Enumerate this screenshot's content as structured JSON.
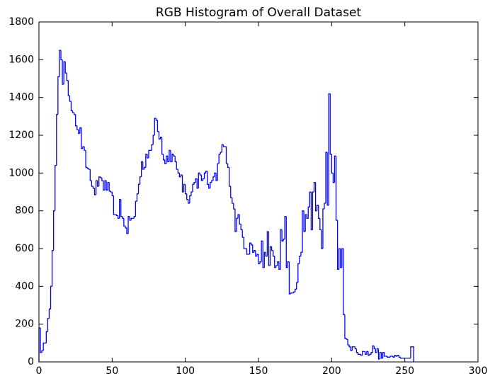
{
  "chart_data": {
    "type": "histogram",
    "title": "RGB Histogram of Overall Dataset",
    "color": "#0000ff",
    "bins": [
      0,
      1,
      2,
      3,
      4,
      5,
      6,
      7,
      8,
      9,
      10,
      11,
      12,
      13,
      14,
      15,
      16,
      17,
      18,
      19,
      20,
      21,
      22,
      23,
      24,
      25,
      26,
      27,
      28,
      29,
      30,
      31,
      32,
      33,
      34,
      35,
      36,
      37,
      38,
      39,
      40,
      41,
      42,
      43,
      44,
      45,
      46,
      47,
      48,
      49,
      50,
      51,
      52,
      53,
      54,
      55,
      56,
      57,
      58,
      59,
      60,
      61,
      62,
      63,
      64,
      65,
      66,
      67,
      68,
      69,
      70,
      71,
      72,
      73,
      74,
      75,
      76,
      77,
      78,
      79,
      80,
      81,
      82,
      83,
      84,
      85,
      86,
      87,
      88,
      89,
      90,
      91,
      92,
      93,
      94,
      95,
      96,
      97,
      98,
      99,
      100,
      101,
      102,
      103,
      104,
      105,
      106,
      107,
      108,
      109,
      110,
      111,
      112,
      113,
      114,
      115,
      116,
      117,
      118,
      119,
      120,
      121,
      122,
      123,
      124,
      125,
      126,
      127,
      128,
      129,
      130,
      131,
      132,
      133,
      134,
      135,
      136,
      137,
      138,
      139,
      140,
      141,
      142,
      143,
      144,
      145,
      146,
      147,
      148,
      149,
      150,
      151,
      152,
      153,
      154,
      155,
      156,
      157,
      158,
      159,
      160,
      161,
      162,
      163,
      164,
      165,
      166,
      167,
      168,
      169,
      170,
      171,
      172,
      173,
      174,
      175,
      176,
      177,
      178,
      179,
      180,
      181,
      182,
      183,
      184,
      185,
      186,
      187,
      188,
      189,
      190,
      191,
      192,
      193,
      194,
      195,
      196,
      197,
      198,
      199,
      200,
      201,
      202,
      203,
      204,
      205,
      206,
      207,
      208,
      209,
      210,
      211,
      212,
      213,
      214,
      215,
      216,
      217,
      218,
      219,
      220,
      221,
      222,
      223,
      224,
      225,
      226,
      227,
      228,
      229,
      230,
      231,
      232,
      233,
      234,
      235,
      236,
      237,
      238,
      239,
      240,
      241,
      242,
      243,
      244,
      245,
      246,
      247,
      248,
      249,
      250,
      251,
      252,
      253,
      254,
      255,
      256
    ],
    "values": [
      180,
      50,
      60,
      100,
      100,
      160,
      230,
      280,
      400,
      590,
      800,
      1040,
      1310,
      1510,
      1650,
      1600,
      1470,
      1590,
      1530,
      1490,
      1410,
      1380,
      1330,
      1320,
      1310,
      1250,
      1230,
      1210,
      1240,
      1130,
      1140,
      1120,
      1030,
      1025,
      1020,
      960,
      930,
      920,
      885,
      960,
      930,
      980,
      975,
      960,
      910,
      960,
      910,
      950,
      905,
      900,
      880,
      780,
      780,
      775,
      760,
      860,
      770,
      760,
      720,
      710,
      680,
      770,
      750,
      760,
      760,
      770,
      850,
      890,
      940,
      980,
      1060,
      1020,
      1030,
      1100,
      1080,
      1120,
      1120,
      1150,
      1200,
      1290,
      1280,
      1220,
      1180,
      1190,
      1100,
      1070,
      1050,
      1090,
      1060,
      1120,
      1060,
      1100,
      1090,
      1060,
      1020,
      1000,
      980,
      990,
      900,
      940,
      890,
      860,
      840,
      880,
      900,
      940,
      950,
      970,
      920,
      1000,
      990,
      960,
      970,
      1000,
      1010,
      940,
      920,
      950,
      960,
      980,
      1000,
      960,
      1050,
      1100,
      1110,
      1150,
      1140,
      1140,
      1050,
      1030,
      930,
      870,
      840,
      810,
      690,
      760,
      780,
      730,
      700,
      660,
      600,
      600,
      570,
      570,
      630,
      620,
      580,
      590,
      560,
      570,
      520,
      530,
      640,
      500,
      580,
      560,
      690,
      510,
      610,
      590,
      560,
      500,
      510,
      530,
      490,
      700,
      640,
      650,
      770,
      500,
      530,
      360,
      365,
      365,
      370,
      385,
      420,
      520,
      560,
      580,
      800,
      690,
      780,
      760,
      820,
      900,
      700,
      900,
      950,
      800,
      830,
      760,
      700,
      600,
      810,
      840,
      1110,
      830,
      1420,
      1100,
      1000,
      950,
      1090,
      750,
      490,
      600,
      500,
      600,
      250,
      125,
      120,
      90,
      80,
      60,
      80,
      80,
      70,
      50,
      40,
      40,
      35,
      55,
      55,
      40,
      55,
      35,
      40,
      50,
      85,
      70,
      50,
      70,
      15,
      50,
      20,
      50,
      30,
      30,
      25,
      25,
      30,
      30,
      25,
      35,
      30,
      35,
      25,
      20,
      20,
      20,
      20,
      20,
      20,
      20,
      80,
      80
    ],
    "xlim": [
      0,
      300
    ],
    "ylim": [
      0,
      1800
    ],
    "xticks": [
      0,
      50,
      100,
      150,
      200,
      250,
      300
    ],
    "yticks": [
      0,
      200,
      400,
      600,
      800,
      1000,
      1200,
      1400,
      1600,
      1800
    ]
  }
}
